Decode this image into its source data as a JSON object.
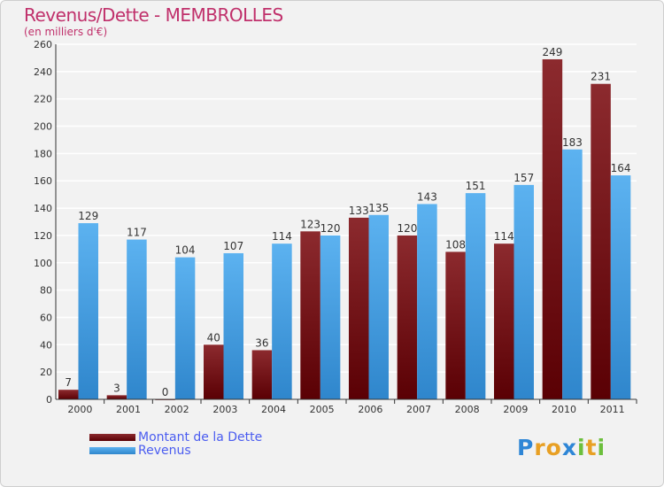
{
  "colors": {
    "dette": "#7a1016",
    "revenus": "#3f9be6"
  },
  "chart_data": {
    "type": "bar",
    "title": "Revenus/Dette - MEMBROLLES",
    "subtitle": "(en milliers d'€)",
    "categories": [
      "2000",
      "2001",
      "2002",
      "2003",
      "2004",
      "2005",
      "2006",
      "2007",
      "2008",
      "2009",
      "2010",
      "2011"
    ],
    "series": [
      {
        "name": "Montant de la Dette",
        "values": [
          7,
          3,
          0,
          40,
          36,
          123,
          133,
          120,
          108,
          114,
          249,
          231
        ]
      },
      {
        "name": "Revenus",
        "values": [
          129,
          117,
          104,
          107,
          114,
          120,
          135,
          143,
          151,
          157,
          183,
          164
        ]
      }
    ],
    "ylim": [
      0,
      260
    ],
    "yticks": [
      0,
      20,
      40,
      60,
      80,
      100,
      120,
      140,
      160,
      180,
      200,
      220,
      240,
      260
    ],
    "grid": true,
    "legend_position": "bottom-left"
  },
  "logo": {
    "letters": [
      "P",
      "r",
      "o",
      "x",
      "i",
      "t",
      "i"
    ],
    "colors": [
      "#2e86d6",
      "#e8a024",
      "#e8a024",
      "#2e86d6",
      "#6cbf3c",
      "#e8a024",
      "#6cbf3c"
    ]
  }
}
